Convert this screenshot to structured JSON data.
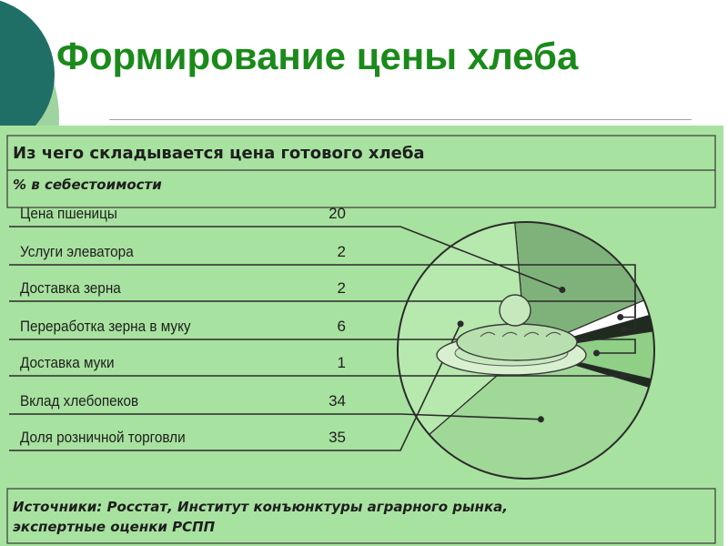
{
  "slide": {
    "title": "Формирование цены хлеба",
    "colors": {
      "title": "#1a8a1a",
      "deco_dark": "#1f6f66",
      "deco_light": "#9fd4a0",
      "panel": "#a8e2a0"
    }
  },
  "chart_data": {
    "type": "pie",
    "title": "Из чего складывается цена готового хлеба",
    "subtitle": "% в себестоимости",
    "categories": [
      "Цена пшеницы",
      "Услуги элеватора",
      "Доставка зерна",
      "Переработка зерна в муку",
      "Доставка муки",
      "Вклад хлебопеков",
      "Доля розничной торговли"
    ],
    "values": [
      20,
      2,
      2,
      6,
      1,
      34,
      35
    ],
    "value_labels": [
      "20",
      "2",
      "2",
      "6",
      "1",
      "34",
      "35"
    ],
    "slice_colors": [
      "#7fb27a",
      "#ffffff",
      "#1e2b1e",
      "#8fcf86",
      "#1e2b1e",
      "#a0d898",
      "#b7e8ae"
    ],
    "source": [
      "Источники: Росстат, Институт конъюнктуры аграрного рынка,",
      "экспертные оценки РСПП"
    ],
    "legend": "left"
  }
}
